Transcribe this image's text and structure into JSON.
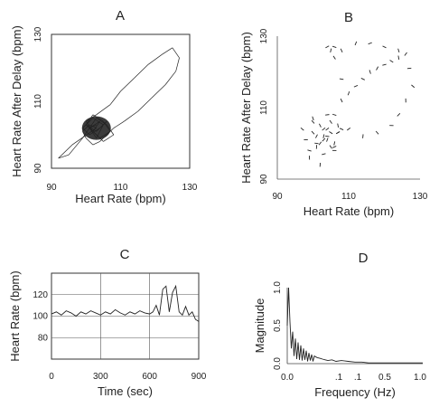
{
  "chart_data": [
    {
      "panel": "A",
      "type": "line",
      "xlabel": "Heart Rate (bpm)",
      "ylabel": "Heart Rate After Delay (bpm)",
      "xlim": [
        90,
        130
      ],
      "ylim": [
        90,
        130
      ],
      "xticks": [
        "90",
        "110",
        "130"
      ],
      "yticks": [
        "90",
        "110",
        "130"
      ],
      "x": [
        100,
        102,
        104,
        101,
        103,
        105,
        102,
        99,
        101,
        104,
        106,
        103,
        100,
        102,
        105,
        107,
        104,
        101,
        103,
        106,
        108,
        105,
        102,
        100,
        103,
        107,
        110,
        114,
        118,
        122,
        125,
        127,
        126,
        123,
        119,
        115,
        111,
        108,
        106,
        104,
        102,
        100,
        99,
        101,
        103,
        96,
        92,
        95,
        99,
        101,
        103
      ],
      "y": [
        103,
        101,
        104,
        102,
        99,
        103,
        105,
        102,
        100,
        102,
        104,
        101,
        103,
        106,
        104,
        101,
        99,
        102,
        105,
        103,
        100,
        98,
        101,
        104,
        106,
        109,
        113,
        117,
        121,
        124,
        126,
        123,
        119,
        115,
        111,
        107,
        104,
        102,
        100,
        98,
        97,
        99,
        101,
        103,
        102,
        97,
        93,
        94,
        99,
        102,
        103
      ]
    },
    {
      "panel": "B",
      "type": "scatter",
      "xlabel": "Heart Rate (bpm)",
      "ylabel": "Heart Rate After Delay (bpm)",
      "xlim": [
        90,
        130
      ],
      "ylim": [
        90,
        130
      ],
      "xticks": [
        "90",
        "110",
        "130"
      ],
      "yticks": [
        "90",
        "110",
        "130"
      ],
      "x": [
        98,
        100,
        101,
        103,
        104,
        105,
        106,
        107,
        99,
        102,
        104,
        106,
        108,
        100,
        101,
        103,
        105,
        107,
        102,
        104,
        97,
        99,
        103,
        106,
        100,
        102,
        104,
        101,
        105,
        103,
        107,
        106,
        108,
        110,
        112,
        114,
        116,
        118,
        120,
        122,
        124,
        126,
        127,
        128,
        126,
        124,
        122,
        118,
        114,
        110,
        108,
        106,
        105,
        104,
        106,
        108,
        112,
        116,
        120,
        124
      ],
      "y": [
        101,
        103,
        99,
        104,
        102,
        106,
        100,
        103,
        98,
        105,
        101,
        99,
        104,
        107,
        102,
        97,
        103,
        105,
        100,
        108,
        104,
        96,
        101,
        98,
        106,
        94,
        104,
        100,
        99,
        102,
        103,
        108,
        112,
        114,
        116,
        118,
        120,
        121,
        122,
        123,
        124,
        125,
        121,
        116,
        112,
        108,
        105,
        103,
        102,
        104,
        118,
        124,
        126,
        127,
        127,
        126,
        128,
        128,
        127,
        126
      ]
    },
    {
      "panel": "C",
      "type": "line",
      "xlabel": "Time (sec)",
      "ylabel": "Heart Rate (bpm)",
      "xlim": [
        0,
        900
      ],
      "ylim": [
        60,
        140
      ],
      "xticks": [
        "0",
        "300",
        "600",
        "900"
      ],
      "yticks": [
        "80",
        "100",
        "120"
      ],
      "x": [
        0,
        30,
        60,
        90,
        120,
        150,
        180,
        210,
        240,
        270,
        300,
        330,
        360,
        390,
        420,
        450,
        480,
        510,
        540,
        570,
        600,
        620,
        640,
        660,
        680,
        700,
        720,
        740,
        760,
        780,
        800,
        820,
        840,
        860,
        880,
        900
      ],
      "y": [
        102,
        104,
        101,
        105,
        103,
        100,
        104,
        102,
        105,
        103,
        101,
        104,
        102,
        106,
        103,
        101,
        104,
        102,
        105,
        103,
        102,
        104,
        110,
        101,
        125,
        128,
        104,
        122,
        128,
        104,
        101,
        109,
        101,
        104,
        97,
        95
      ]
    },
    {
      "panel": "D",
      "type": "line",
      "xlabel": "Frequency (Hz)",
      "ylabel": "Magnitude",
      "xlim": [
        0,
        1
      ],
      "ylim": [
        0,
        1
      ],
      "xticks": [
        "0.0",
        ".1",
        ".1",
        "0.5",
        "1.0"
      ],
      "yticks": [
        "0.0",
        "0.5",
        "1.0"
      ],
      "x": [
        0.0,
        0.01,
        0.02,
        0.03,
        0.04,
        0.05,
        0.06,
        0.07,
        0.08,
        0.09,
        0.1,
        0.11,
        0.12,
        0.13,
        0.14,
        0.15,
        0.16,
        0.17,
        0.18,
        0.19,
        0.2,
        0.22,
        0.24,
        0.26,
        0.28,
        0.3,
        0.33,
        0.36,
        0.4,
        0.45,
        0.5,
        0.55,
        0.6,
        0.7,
        0.8,
        0.9,
        1.0
      ],
      "y": [
        0.5,
        1.0,
        0.55,
        0.2,
        0.42,
        0.1,
        0.33,
        0.06,
        0.28,
        0.05,
        0.24,
        0.04,
        0.2,
        0.05,
        0.17,
        0.03,
        0.14,
        0.04,
        0.12,
        0.03,
        0.1,
        0.08,
        0.07,
        0.06,
        0.05,
        0.04,
        0.05,
        0.03,
        0.04,
        0.03,
        0.02,
        0.02,
        0.01,
        0.01,
        0.01,
        0.01,
        0.01
      ]
    }
  ]
}
